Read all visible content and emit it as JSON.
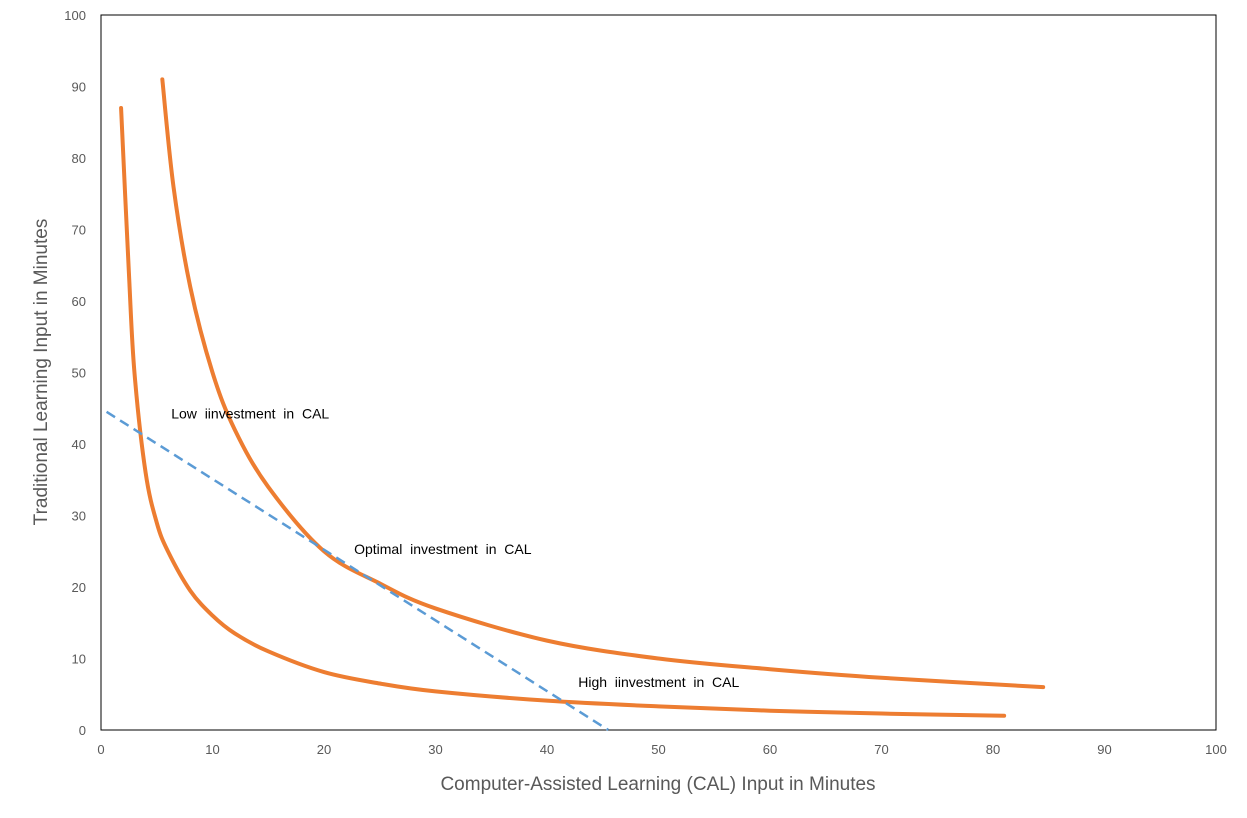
{
  "chart_data": {
    "type": "line",
    "title": "",
    "xlabel": "Computer-Assisted  Learning  (CAL)  Input  in  Minutes",
    "ylabel": "Traditional  Learning  Input  in  Minutes",
    "xlim": [
      0,
      100
    ],
    "ylim": [
      0,
      100
    ],
    "x_ticks": [
      "0",
      "10",
      "20",
      "30",
      "40",
      "50",
      "60",
      "70",
      "80",
      "90",
      "100"
    ],
    "y_ticks": [
      "0",
      "10",
      "20",
      "30",
      "40",
      "50",
      "60",
      "70",
      "80",
      "90",
      "100"
    ],
    "grid": false,
    "legend": "none",
    "series": [
      {
        "style": "solid",
        "color": "#ED7D31",
        "x": [
          1.8,
          2.5,
          3,
          4,
          5,
          6,
          8,
          10,
          12,
          15,
          20,
          25,
          30,
          40,
          50,
          60,
          70,
          81
        ],
        "y": [
          87,
          64,
          50,
          36,
          29,
          25,
          19.5,
          16,
          13.5,
          11,
          8.1,
          6.5,
          5.4,
          4.1,
          3.3,
          2.7,
          2.3,
          2
        ]
      },
      {
        "style": "solid",
        "color": "#ED7D31",
        "x": [
          5.5,
          6.5,
          8,
          10,
          12,
          15,
          20,
          25,
          30,
          40,
          50,
          60,
          70,
          84.5
        ],
        "y": [
          91,
          76,
          62,
          50,
          42,
          34,
          25,
          20.5,
          17,
          12.5,
          10,
          8.5,
          7.3,
          6
        ]
      },
      {
        "style": "dashed",
        "color": "#5B9BD5",
        "x": [
          0.5,
          45.5
        ],
        "y": [
          44.5,
          0
        ]
      }
    ],
    "annotations": [
      {
        "text": "Low  iinvestment  in  CAL",
        "x": 6.3,
        "y": 43.6
      },
      {
        "text": "Optimal  investment  in  CAL",
        "x": 22.7,
        "y": 24.6
      },
      {
        "text": "High  iinvestment  in  CAL",
        "x": 42.8,
        "y": 6
      }
    ]
  }
}
